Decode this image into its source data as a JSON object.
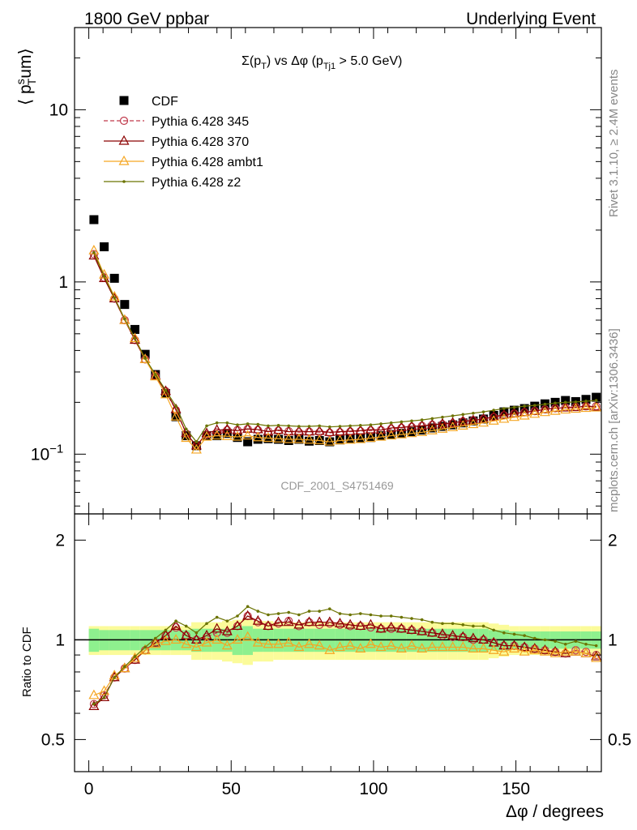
{
  "header": {
    "left": "1800 GeV ppbar",
    "right": "Underlying Event"
  },
  "side": {
    "rivet": "Rivet 3.1.10, ≥ 2.4M events",
    "mcplots": "mcplots.cern.ch [arXiv:1306.3436]"
  },
  "chart_data": [
    {
      "type": "scatter",
      "panel": "main",
      "title_parts": {
        "a": "Σ(p",
        "a_sub": "T",
        "b": ") vs Δφ (p",
        "b_sub": "Tj1",
        "c": " > 5.0 GeV)"
      },
      "ylabel_parts": {
        "a": "⟨ p",
        "sup": "s",
        "sub": "T",
        "b": "um⟩"
      },
      "watermark": "CDF_2001_S4751469",
      "yscale": "log",
      "xlim": [
        -5,
        180
      ],
      "ylim": [
        0.045,
        30
      ],
      "yticks": [
        {
          "value": 0.1,
          "label": "10",
          "exp": "−1"
        },
        {
          "value": 1,
          "label": "1",
          "exp": ""
        },
        {
          "value": 10,
          "label": "10",
          "exp": ""
        }
      ],
      "legend_position": "top-left",
      "x": [
        1.8,
        5.4,
        9,
        12.6,
        16.2,
        19.8,
        23.4,
        27,
        30.6,
        34.2,
        37.8,
        41.4,
        45,
        48.6,
        52.2,
        55.8,
        59.4,
        63,
        66.6,
        70.2,
        73.8,
        77.4,
        81,
        84.6,
        88.2,
        91.8,
        95.4,
        99,
        102.6,
        106.2,
        109.8,
        113.4,
        117,
        120.6,
        124.2,
        127.8,
        131.4,
        135,
        138.6,
        142.2,
        145.8,
        149.4,
        153,
        156.6,
        160.2,
        163.8,
        167.4,
        171,
        174.6,
        178.2
      ],
      "series": [
        {
          "name": "CDF",
          "style": "square",
          "color": "#000000",
          "values": [
            2.3,
            1.6,
            1.05,
            0.74,
            0.53,
            0.38,
            0.29,
            0.225,
            0.165,
            0.128,
            0.112,
            0.128,
            0.128,
            0.132,
            0.125,
            0.118,
            0.122,
            0.123,
            0.122,
            0.12,
            0.122,
            0.119,
            0.12,
            0.118,
            0.121,
            0.123,
            0.124,
            0.125,
            0.128,
            0.13,
            0.132,
            0.135,
            0.138,
            0.142,
            0.145,
            0.148,
            0.152,
            0.156,
            0.16,
            0.168,
            0.176,
            0.18,
            0.184,
            0.19,
            0.196,
            0.2,
            0.205,
            0.202,
            0.208,
            0.214
          ]
        },
        {
          "name": "Pythia 6.428 345",
          "style": "circle-dashed",
          "color": "#c0394b",
          "values": [
            1.45,
            1.06,
            0.8,
            0.6,
            0.46,
            0.355,
            0.285,
            0.232,
            0.18,
            0.132,
            0.112,
            0.13,
            0.134,
            0.138,
            0.138,
            0.14,
            0.138,
            0.136,
            0.137,
            0.136,
            0.134,
            0.135,
            0.134,
            0.133,
            0.134,
            0.135,
            0.136,
            0.137,
            0.138,
            0.14,
            0.142,
            0.144,
            0.146,
            0.148,
            0.149,
            0.151,
            0.155,
            0.157,
            0.16,
            0.164,
            0.168,
            0.172,
            0.175,
            0.178,
            0.182,
            0.185,
            0.187,
            0.188,
            0.19,
            0.19
          ]
        },
        {
          "name": "Pythia 6.428 370",
          "style": "triangle",
          "color": "#8b0000",
          "values": [
            1.42,
            1.05,
            0.8,
            0.6,
            0.46,
            0.355,
            0.285,
            0.232,
            0.182,
            0.132,
            0.112,
            0.132,
            0.138,
            0.139,
            0.137,
            0.14,
            0.139,
            0.135,
            0.138,
            0.135,
            0.136,
            0.135,
            0.136,
            0.134,
            0.135,
            0.136,
            0.137,
            0.139,
            0.138,
            0.142,
            0.143,
            0.145,
            0.146,
            0.148,
            0.15,
            0.152,
            0.155,
            0.157,
            0.16,
            0.165,
            0.169,
            0.172,
            0.175,
            0.178,
            0.182,
            0.185,
            0.186,
            0.187,
            0.19,
            0.188
          ]
        },
        {
          "name": "Pythia 6.428 ambt1",
          "style": "triangle",
          "color": "#f5a623",
          "values": [
            1.52,
            1.1,
            0.82,
            0.6,
            0.47,
            0.355,
            0.282,
            0.222,
            0.165,
            0.124,
            0.106,
            0.126,
            0.128,
            0.127,
            0.126,
            0.128,
            0.125,
            0.124,
            0.123,
            0.122,
            0.122,
            0.121,
            0.12,
            0.118,
            0.12,
            0.121,
            0.122,
            0.124,
            0.126,
            0.128,
            0.13,
            0.132,
            0.134,
            0.137,
            0.14,
            0.143,
            0.146,
            0.149,
            0.152,
            0.156,
            0.16,
            0.164,
            0.167,
            0.171,
            0.175,
            0.178,
            0.181,
            0.183,
            0.185,
            0.186
          ]
        },
        {
          "name": "Pythia 6.428 z2",
          "style": "dot-line",
          "color": "#6b7300",
          "values": [
            1.48,
            1.08,
            0.81,
            0.61,
            0.47,
            0.36,
            0.29,
            0.235,
            0.19,
            0.14,
            0.118,
            0.146,
            0.152,
            0.152,
            0.148,
            0.15,
            0.149,
            0.146,
            0.147,
            0.146,
            0.145,
            0.145,
            0.146,
            0.144,
            0.145,
            0.146,
            0.147,
            0.148,
            0.15,
            0.152,
            0.154,
            0.156,
            0.158,
            0.161,
            0.164,
            0.167,
            0.17,
            0.173,
            0.176,
            0.18,
            0.184,
            0.187,
            0.19,
            0.192,
            0.195,
            0.198,
            0.2,
            0.201,
            0.203,
            0.205
          ]
        }
      ]
    },
    {
      "type": "scatter",
      "panel": "ratio",
      "ylabel": "Ratio to CDF",
      "xlabel": "Δφ / degrees",
      "xlim": [
        -5,
        180
      ],
      "ylim": [
        0.4,
        2.4
      ],
      "yscale": "log",
      "xticks": [
        0,
        50,
        100,
        150
      ],
      "yticks": [
        0.5,
        1,
        2
      ],
      "band_inner": [
        0.08,
        0.07,
        0.07,
        0.07,
        0.07,
        0.07,
        0.07,
        0.07,
        0.07,
        0.07,
        0.08,
        0.08,
        0.08,
        0.08,
        0.1,
        0.1,
        0.08,
        0.08,
        0.08,
        0.08,
        0.08,
        0.08,
        0.08,
        0.08,
        0.08,
        0.08,
        0.08,
        0.08,
        0.08,
        0.08,
        0.08,
        0.08,
        0.08,
        0.08,
        0.08,
        0.08,
        0.08,
        0.08,
        0.08,
        0.07,
        0.07,
        0.06,
        0.06,
        0.06,
        0.06,
        0.06,
        0.06,
        0.06,
        0.06,
        0.06
      ],
      "band_outer": [
        0.1,
        0.1,
        0.1,
        0.1,
        0.1,
        0.1,
        0.1,
        0.1,
        0.1,
        0.1,
        0.13,
        0.13,
        0.13,
        0.14,
        0.15,
        0.16,
        0.14,
        0.14,
        0.13,
        0.13,
        0.13,
        0.13,
        0.13,
        0.13,
        0.13,
        0.13,
        0.13,
        0.13,
        0.13,
        0.13,
        0.13,
        0.13,
        0.13,
        0.13,
        0.13,
        0.13,
        0.13,
        0.13,
        0.13,
        0.12,
        0.11,
        0.1,
        0.1,
        0.1,
        0.1,
        0.1,
        0.1,
        0.1,
        0.1,
        0.1
      ],
      "series": [
        {
          "name": "Pythia 6.428 345",
          "style": "circle-dashed",
          "color": "#c0394b",
          "values": [
            0.64,
            0.68,
            0.77,
            0.82,
            0.87,
            0.93,
            0.98,
            1.03,
            1.09,
            1.03,
            1.0,
            1.02,
            1.05,
            1.05,
            1.1,
            1.18,
            1.13,
            1.1,
            1.12,
            1.14,
            1.1,
            1.13,
            1.11,
            1.12,
            1.11,
            1.1,
            1.1,
            1.09,
            1.08,
            1.08,
            1.08,
            1.07,
            1.06,
            1.05,
            1.03,
            1.02,
            1.02,
            1.0,
            1.0,
            0.98,
            0.96,
            0.96,
            0.95,
            0.94,
            0.93,
            0.92,
            0.91,
            0.93,
            0.92,
            0.9
          ]
        },
        {
          "name": "Pythia 6.428 370",
          "style": "triangle",
          "color": "#8b0000",
          "values": [
            0.63,
            0.67,
            0.77,
            0.82,
            0.87,
            0.93,
            0.98,
            1.03,
            1.1,
            1.03,
            1.0,
            1.03,
            1.08,
            1.06,
            1.1,
            1.18,
            1.14,
            1.1,
            1.13,
            1.13,
            1.11,
            1.13,
            1.13,
            1.13,
            1.12,
            1.11,
            1.1,
            1.11,
            1.08,
            1.09,
            1.08,
            1.07,
            1.06,
            1.05,
            1.04,
            1.03,
            1.02,
            1.01,
            1.0,
            0.98,
            0.96,
            0.96,
            0.95,
            0.94,
            0.93,
            0.92,
            0.91,
            0.92,
            0.91,
            0.89
          ]
        },
        {
          "name": "Pythia 6.428 ambt1",
          "style": "triangle",
          "color": "#f5a623",
          "values": [
            0.68,
            0.7,
            0.78,
            0.82,
            0.88,
            0.93,
            0.97,
            0.99,
            1.0,
            0.97,
            0.95,
            0.98,
            1.0,
            0.96,
            1.0,
            1.02,
            0.98,
            0.97,
            0.97,
            0.98,
            0.95,
            0.97,
            0.96,
            0.93,
            0.95,
            0.96,
            0.94,
            0.97,
            0.95,
            0.96,
            0.94,
            0.96,
            0.94,
            0.95,
            0.95,
            0.95,
            0.95,
            0.94,
            0.94,
            0.93,
            0.92,
            0.94,
            0.92,
            0.93,
            0.92,
            0.91,
            0.92,
            0.92,
            0.91,
            0.88
          ]
        },
        {
          "name": "Pythia 6.428 z2",
          "style": "dot-line",
          "color": "#6b7300",
          "values": [
            0.64,
            0.67,
            0.77,
            0.83,
            0.89,
            0.95,
            1.01,
            1.07,
            1.14,
            1.1,
            1.05,
            1.12,
            1.17,
            1.14,
            1.18,
            1.26,
            1.22,
            1.19,
            1.2,
            1.21,
            1.19,
            1.22,
            1.22,
            1.24,
            1.2,
            1.19,
            1.2,
            1.19,
            1.18,
            1.18,
            1.17,
            1.16,
            1.15,
            1.13,
            1.12,
            1.12,
            1.11,
            1.1,
            1.1,
            1.07,
            1.05,
            1.04,
            1.03,
            1.01,
            1.0,
            0.99,
            0.97,
            0.99,
            0.97,
            0.96
          ]
        }
      ]
    }
  ]
}
